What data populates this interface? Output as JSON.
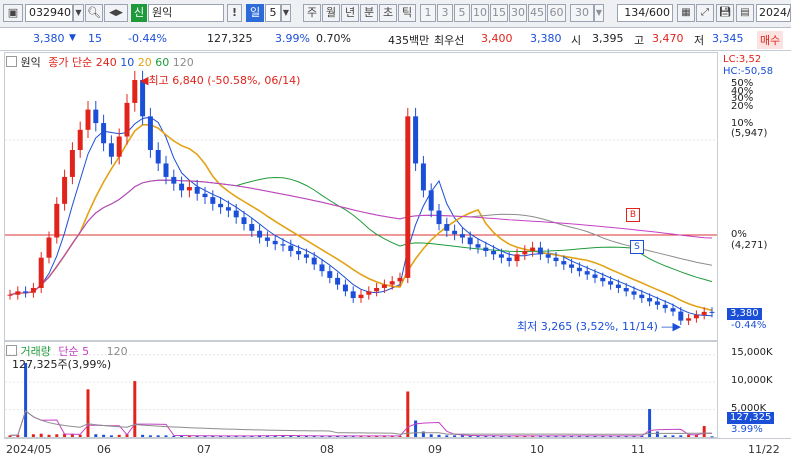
{
  "toolbar": {
    "stock_code": "032940",
    "new_badge": "신",
    "stock_name": "원익",
    "alert_label": "!",
    "period_day": "일",
    "period_count": "5",
    "periods": [
      "주",
      "월",
      "년",
      "분",
      "초",
      "틱"
    ],
    "minute_presets": [
      "1",
      "3",
      "5",
      "10",
      "15",
      "30",
      "45",
      "60"
    ],
    "tick_value": "30",
    "display_count": "134",
    "display_total": "/600",
    "date_field": "2024/",
    "buy_label": "매수"
  },
  "quote": {
    "price": "3,380",
    "change": "15",
    "change_pct": "-0.44%",
    "volume": "127,325",
    "vol_pct": "3.99%",
    "turnover": "0.70%",
    "value": "435백만",
    "best_ask_label": "최우선",
    "best_ask": "3,400",
    "best_bid": "3,380",
    "open_label": "시",
    "open": "3,395",
    "high_label": "고",
    "high": "3,470",
    "low_label": "저",
    "low": "3,345"
  },
  "price_panel": {
    "legend_name": "원익",
    "legend_ma_label": "종가 단순",
    "legend_ma_periods": [
      "240",
      "10",
      "20",
      "60",
      "120"
    ],
    "legend_ma_colors": [
      "#e0241b",
      "#1b4fd8",
      "#e3a215",
      "#1f9a3a",
      "#8c8c8c"
    ],
    "ma240_color": "#c640c6",
    "high_note": "최고 6,840 (-50.58%, 06/14)",
    "low_note": "최저 3,265 (3,52%, 11/14)",
    "lc": "LC:3,52",
    "hc": "HC:-50,58",
    "right_labels": [
      "50%",
      "40%",
      "30%",
      "20%",
      "10%",
      "(5,947)",
      "0%",
      "(4,271)"
    ],
    "current_price_box": "3,380",
    "current_pct": "-0.44%",
    "signal_b": "B",
    "signal_s": "S"
  },
  "volume_panel": {
    "legend_name": "거래량",
    "legend_ma_label": "단순 5",
    "legend_ma_120": "120",
    "current_value": "127,325주(3,99%)",
    "right_labels": [
      "15,000K",
      "10,000K",
      "5,000K"
    ],
    "current_box": "127,325",
    "current_pct": "3.99%"
  },
  "x_axis": {
    "labels": [
      "2024/05",
      "06",
      "07",
      "08",
      "09",
      "10",
      "11",
      "11/22"
    ]
  },
  "chart_data": {
    "type": "candlestick",
    "title": "원익",
    "x_start": "2024/05",
    "x_end": "11/22",
    "price_high": 6840,
    "price_high_date": "06/14",
    "price_low": 3265,
    "price_low_date": "11/14",
    "reference_price": 4271,
    "reference_10pct": 5947,
    "close_series": [
      3650,
      3700,
      3680,
      3750,
      4200,
      4500,
      5000,
      5400,
      5800,
      6100,
      6400,
      6200,
      5900,
      5700,
      6000,
      6500,
      6840,
      6300,
      5800,
      5600,
      5400,
      5300,
      5200,
      5250,
      5150,
      5100,
      5000,
      4950,
      4900,
      4800,
      4700,
      4600,
      4500,
      4450,
      4400,
      4380,
      4300,
      4250,
      4200,
      4100,
      4000,
      3900,
      3800,
      3700,
      3600,
      3650,
      3700,
      3750,
      3800,
      3850,
      3900,
      6300,
      5600,
      5200,
      4900,
      4700,
      4600,
      4550,
      4500,
      4400,
      4350,
      4300,
      4250,
      4200,
      4150,
      4250,
      4300,
      4350,
      4250,
      4200,
      4150,
      4100,
      4050,
      4000,
      3950,
      3900,
      3850,
      3800,
      3750,
      3700,
      3650,
      3600,
      3550,
      3500,
      3450,
      3400,
      3265,
      3300,
      3350,
      3395,
      3380
    ],
    "volume_series": [
      0.3,
      0.4,
      13.5,
      0.5,
      0.6,
      0.4,
      0.5,
      0.6,
      0.5,
      0.4,
      8.7,
      0.5,
      0.4,
      0.3,
      0.4,
      0.5,
      10.2,
      0.4,
      0.3,
      0.3,
      0.3,
      0.2,
      0.3,
      0.2,
      0.2,
      0.2,
      0.2,
      0.2,
      0.2,
      0.2,
      0.2,
      0.2,
      0.3,
      0.3,
      0.3,
      0.3,
      0.2,
      0.2,
      0.2,
      0.2,
      0.2,
      0.2,
      0.2,
      0.2,
      0.2,
      0.2,
      0.2,
      0.2,
      0.2,
      0.2,
      0.2,
      8.3,
      3.0,
      1.0,
      0.5,
      0.4,
      0.3,
      0.3,
      0.3,
      0.2,
      0.2,
      0.2,
      0.2,
      0.2,
      0.2,
      0.2,
      0.2,
      0.2,
      0.2,
      0.2,
      0.2,
      0.2,
      0.2,
      0.2,
      0.2,
      0.2,
      0.2,
      0.2,
      0.2,
      0.2,
      0.2,
      0.2,
      5.1,
      1.0,
      0.3,
      0.3,
      0.3,
      0.4,
      0.5,
      2.0,
      0.127
    ],
    "volume_unit": "M",
    "moving_averages": [
      "10",
      "20",
      "60",
      "120",
      "240"
    ]
  }
}
